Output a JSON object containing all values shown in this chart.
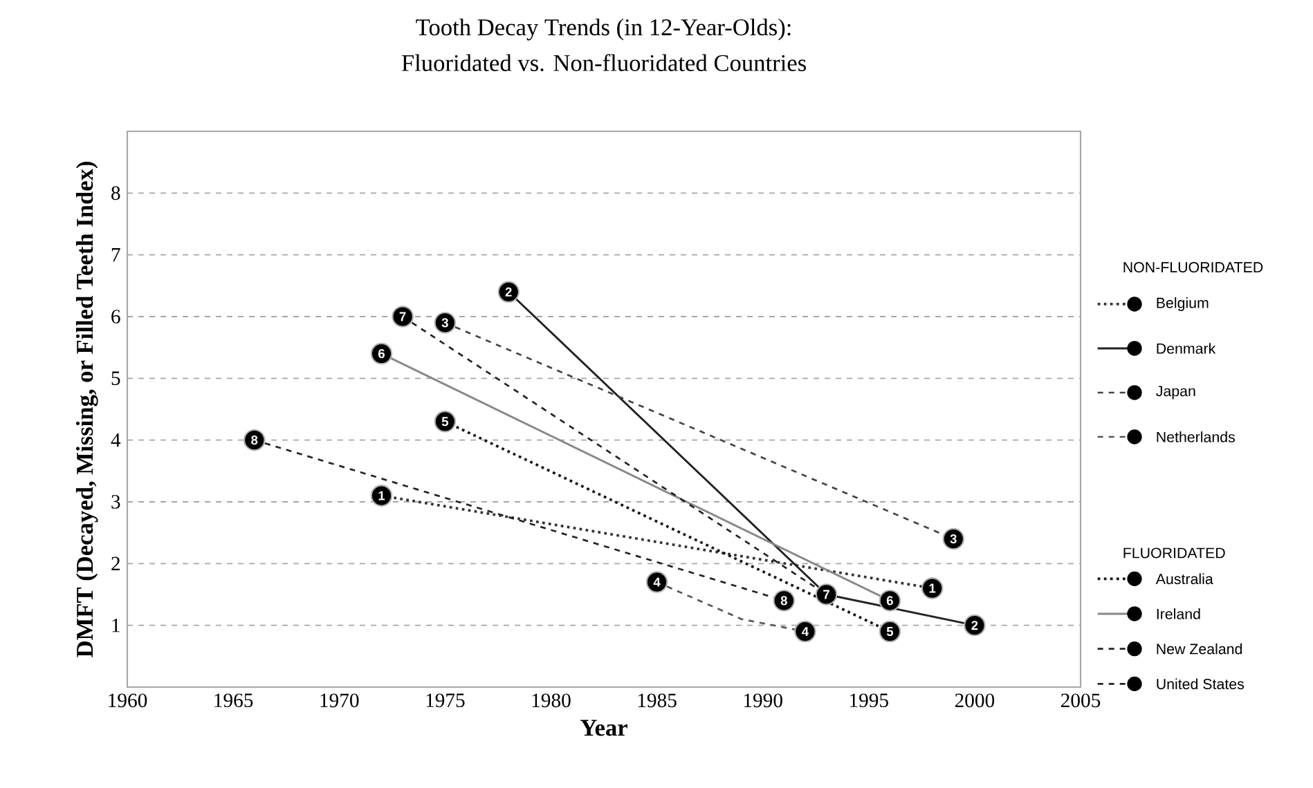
{
  "chart_data": {
    "type": "line",
    "title": "Tooth Decay Trends (in 12-Year-Olds):",
    "subtitle": "Fluoridated vs. Non-fluoridated Countries",
    "xlabel": "Year",
    "ylabel": "DMFT (Decayed, Missing, or Filled Teeth Index)",
    "xlim": [
      1960,
      2005
    ],
    "xticks": [
      1960,
      1965,
      1970,
      1975,
      1980,
      1985,
      1990,
      1995,
      2000,
      2005
    ],
    "ylim": [
      0,
      9
    ],
    "yticks": [
      1,
      2,
      3,
      4,
      5,
      6,
      7,
      8
    ],
    "grid": "y",
    "legend": "right",
    "marker": "circle",
    "series": [
      {
        "name": "Belgium",
        "color": "#333333",
        "line_style": "dotted",
        "x": [
          1972,
          1998
        ],
        "values": [
          3.1,
          1.6
        ]
      },
      {
        "name": "Denmark",
        "color": "#222222",
        "line_style": "solid",
        "x": [
          1978,
          1993,
          2000
        ],
        "values": [
          6.4,
          1.5,
          1.0
        ]
      },
      {
        "name": "Japan",
        "color": "#444444",
        "line_style": "dashed",
        "x": [
          1975,
          1999
        ],
        "values": [
          5.9,
          2.4
        ]
      },
      {
        "name": "Netherlands",
        "color": "#555555",
        "line_style": "dashed",
        "x": [
          1985,
          1989,
          1992
        ],
        "values": [
          1.7,
          1.1,
          0.9
        ]
      },
      {
        "name": "Australia",
        "color": "#111111",
        "line_style": "dotted",
        "x": [
          1975,
          1996
        ],
        "values": [
          4.3,
          0.9
        ]
      },
      {
        "name": "Ireland",
        "color": "#888888",
        "line_style": "solid",
        "x": [
          1972,
          1996
        ],
        "values": [
          5.4,
          1.4
        ]
      },
      {
        "name": "New Zealand",
        "color": "#222222",
        "line_style": "dashed",
        "x": [
          1973,
          1993
        ],
        "values": [
          6.0,
          1.5
        ]
      },
      {
        "name": "United States",
        "color": "#222222",
        "line_style": "dashed",
        "x": [
          1966,
          1991
        ],
        "values": [
          4.0,
          1.4
        ]
      }
    ],
    "annotations": [
      "NON-FLUORIDATED",
      "FLUORIDATED",
      {
        "text": "1",
        "x": 1972,
        "y": 3.1
      },
      {
        "text": "1",
        "x": 1998,
        "y": 1.6
      },
      {
        "text": "2",
        "x": 1978,
        "y": 6.4
      },
      {
        "text": "2",
        "x": 2000,
        "y": 1.0
      },
      {
        "text": "3",
        "x": 1975,
        "y": 5.9
      },
      {
        "text": "3",
        "x": 1999,
        "y": 2.4
      },
      {
        "text": "4",
        "x": 1985,
        "y": 1.7
      },
      {
        "text": "4",
        "x": 1992,
        "y": 0.9
      },
      {
        "text": "5",
        "x": 1975,
        "y": 4.3
      },
      {
        "text": "5",
        "x": 1996,
        "y": 0.9
      },
      {
        "text": "6",
        "x": 1972,
        "y": 5.4
      },
      {
        "text": "6",
        "x": 1996,
        "y": 1.4
      },
      {
        "text": "7",
        "x": 1973,
        "y": 6.0
      },
      {
        "text": "7",
        "x": 1993,
        "y": 1.5
      },
      {
        "text": "8",
        "x": 1966,
        "y": 4.0
      },
      {
        "text": "8",
        "x": 1991,
        "y": 1.4
      }
    ]
  }
}
